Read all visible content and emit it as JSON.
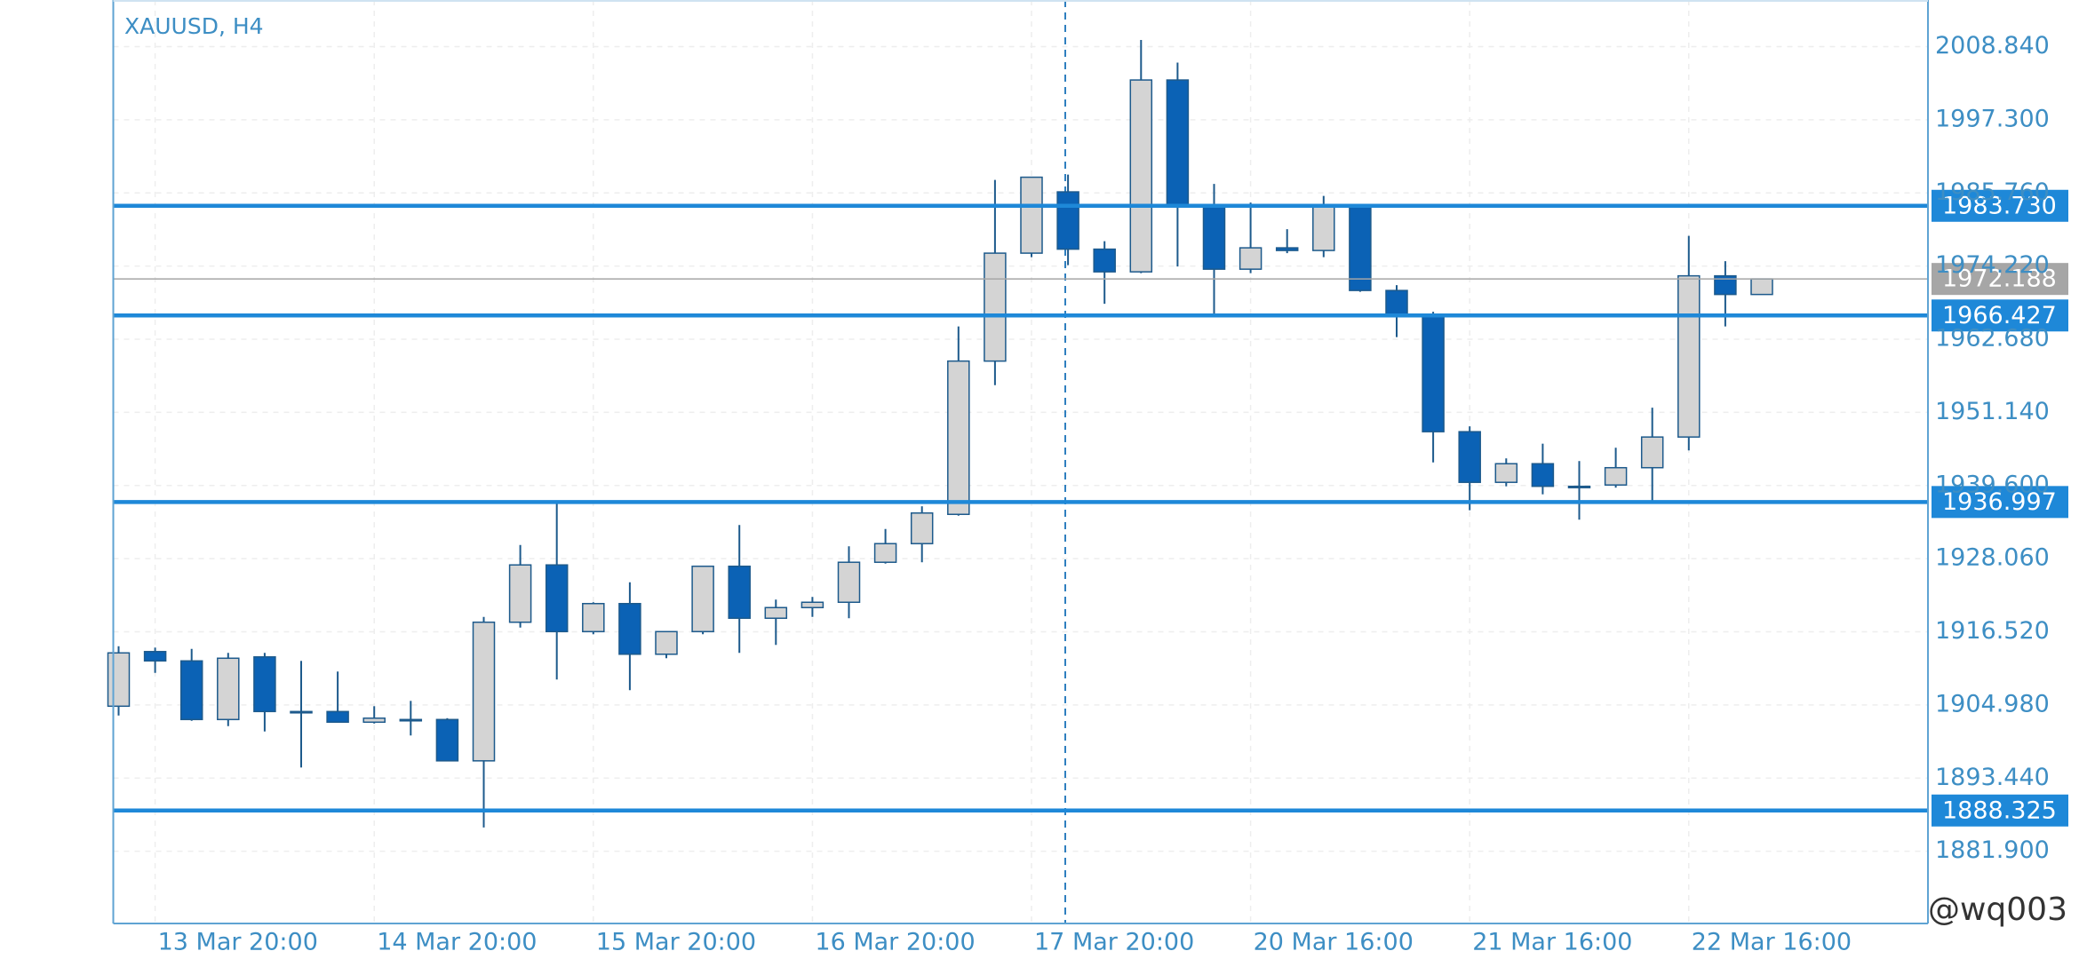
{
  "chart_data": {
    "type": "candlestick",
    "title": "XAUUSD, H4",
    "watermark": "@wq003",
    "categories": [
      null,
      "13 Mar 20:00",
      null,
      null,
      null,
      null,
      null,
      "14 Mar 20:00",
      null,
      null,
      null,
      null,
      null,
      "15 Mar 20:00",
      null,
      null,
      null,
      null,
      null,
      "16 Mar 20:00",
      null,
      null,
      null,
      null,
      null,
      "17 Mar 20:00",
      null,
      null,
      null,
      null,
      null,
      "20 Mar 16:00",
      null,
      null,
      null,
      null,
      null,
      "21 Mar 16:00",
      null,
      null,
      null,
      null,
      null,
      "22 Mar 16:00",
      null,
      null
    ],
    "open": [
      1904.78,
      1913.4,
      1911.93,
      1902.68,
      1912.56,
      1903.94,
      1903.94,
      1902.26,
      1902.68,
      1902.68,
      1896.16,
      1918.03,
      1927.07,
      1916.55,
      1920.97,
      1912.98,
      1916.55,
      1926.86,
      1918.66,
      1920.34,
      1921.18,
      1927.49,
      1930.43,
      1935.05,
      1959.23,
      1976.26,
      1985.93,
      1976.89,
      1973.31,
      2003.58,
      1983.82,
      1973.73,
      1977.1,
      1976.68,
      1983.61,
      1970.37,
      1966.59,
      1948.09,
      1940.1,
      1943.04,
      1939.47,
      1939.68,
      1942.41,
      1947.25,
      1972.68,
      1969.74
    ],
    "high": [
      1914.24,
      1914.03,
      1913.82,
      1913.19,
      1913.19,
      1911.93,
      1910.25,
      1904.78,
      1905.62,
      1902.89,
      1918.87,
      1930.22,
      1936.74,
      1921.18,
      1924.33,
      1916.55,
      1926.86,
      1933.37,
      1921.6,
      1922.02,
      1930.01,
      1932.74,
      1936.32,
      1964.69,
      1987.82,
      1988.24,
      1988.66,
      1978.15,
      2009.89,
      2006.32,
      1987.19,
      1984.24,
      1980.04,
      1985.3,
      1983.61,
      1971.21,
      1967.01,
      1948.93,
      1943.88,
      1946.2,
      1943.46,
      1945.56,
      1951.87,
      1978.99,
      1975.0,
      1972.188
    ],
    "low": [
      1903.31,
      1910.04,
      1902.47,
      1901.63,
      1900.79,
      1895.11,
      1902.26,
      1902.05,
      1900.16,
      1896.16,
      1885.65,
      1917.19,
      1908.99,
      1916.13,
      1907.31,
      1912.35,
      1916.13,
      1913.19,
      1914.45,
      1918.87,
      1918.66,
      1927.28,
      1927.49,
      1934.84,
      1955.44,
      1975.63,
      1974.36,
      1968.27,
      1973.1,
      1974.15,
      1966.17,
      1973.1,
      1976.26,
      1975.63,
      1970.16,
      1963.01,
      1943.25,
      1935.69,
      1939.47,
      1938.21,
      1934.21,
      1939.26,
      1937.16,
      1945.14,
      1964.69,
      1969.74
    ],
    "close": [
      1913.19,
      1911.93,
      1902.68,
      1912.35,
      1903.94,
      1903.94,
      1902.26,
      1902.89,
      1902.68,
      1896.16,
      1918.03,
      1927.07,
      1916.55,
      1920.97,
      1912.98,
      1916.55,
      1926.86,
      1918.66,
      1920.34,
      1921.18,
      1927.49,
      1930.43,
      1935.26,
      1959.23,
      1976.26,
      1988.24,
      1976.89,
      1973.31,
      2003.58,
      1983.82,
      1973.73,
      1977.1,
      1976.68,
      1983.61,
      1970.37,
      1966.59,
      1948.09,
      1940.1,
      1943.04,
      1939.47,
      1939.47,
      1942.41,
      1947.25,
      1972.68,
      1969.74,
      1972.188
    ],
    "up_color": "#d4d4d4",
    "down_color": "#0b62b5",
    "outline_color": "#1d5a8c",
    "ylim": [
      1870.5,
      2016.2
    ],
    "yticks": [
      {
        "value": 2008.84,
        "label": "2008.840"
      },
      {
        "value": 1997.3,
        "label": "1997.300"
      },
      {
        "value": 1985.76,
        "label": "1985.760"
      },
      {
        "value": 1974.22,
        "label": "1974.220"
      },
      {
        "value": 1962.68,
        "label": "1962.680"
      },
      {
        "value": 1951.14,
        "label": "1951.140"
      },
      {
        "value": 1939.6,
        "label": "1939.600"
      },
      {
        "value": 1928.06,
        "label": "1928.060"
      },
      {
        "value": 1916.52,
        "label": "1916.520"
      },
      {
        "value": 1904.98,
        "label": "1904.980"
      },
      {
        "value": 1893.44,
        "label": "1893.440"
      },
      {
        "value": 1881.9,
        "label": "1881.900"
      }
    ],
    "grid": true,
    "price_lines": [
      {
        "value": 1983.73,
        "label": "1983.730"
      },
      {
        "value": 1966.427,
        "label": "1966.427"
      },
      {
        "value": 1936.997,
        "label": "1936.997"
      },
      {
        "value": 1888.325,
        "label": "1888.325"
      }
    ],
    "price_line_color": "#1e88d8",
    "current_price": 1972.188,
    "current_price_color": "#a6a6a6"
  }
}
